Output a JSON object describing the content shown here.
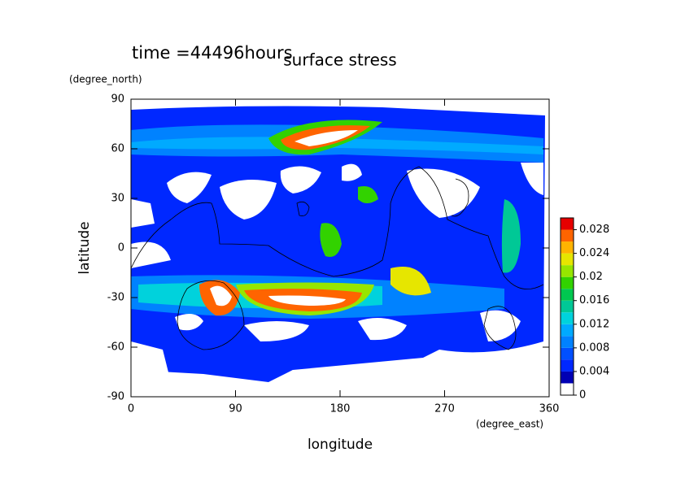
{
  "chart_data": {
    "type": "contour",
    "title": "surface stress",
    "subtitle": "time =44496hours",
    "xlabel": "longitude",
    "ylabel": "latitude",
    "x_unit": "(degree_east)",
    "y_unit": "(degree_north)",
    "xlim": [
      0,
      360
    ],
    "ylim": [
      -90,
      90
    ],
    "xticks": [
      0,
      90,
      180,
      270,
      360
    ],
    "yticks": [
      -90,
      -60,
      -30,
      0,
      30,
      60,
      90
    ],
    "colorbar": {
      "levels": [
        0,
        0.002,
        0.004,
        0.006,
        0.008,
        0.01,
        0.012,
        0.014,
        0.016,
        0.018,
        0.02,
        0.022,
        0.024,
        0.026,
        0.028,
        0.03
      ],
      "colors": [
        "#ffffff",
        "#0000b4",
        "#0028ff",
        "#0050ff",
        "#0082ff",
        "#00aaff",
        "#00d2dc",
        "#00c896",
        "#00c850",
        "#32d200",
        "#96e600",
        "#e6e600",
        "#ffb400",
        "#ff6400",
        "#e60000"
      ],
      "ticks": [
        0,
        0.004,
        0.008,
        0.012,
        0.016,
        0.02,
        0.024,
        0.028
      ]
    }
  }
}
